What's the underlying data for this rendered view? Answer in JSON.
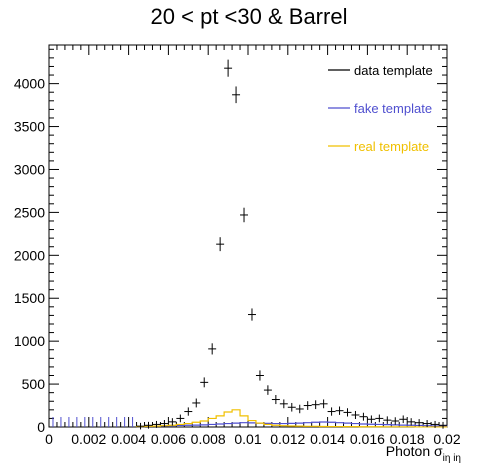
{
  "chart_data": {
    "type": "histogram",
    "title": "20 < pt <30 & Barrel",
    "xlabel": "Photon σ",
    "xlabel_subscript": "iη iη",
    "xlim": [
      0,
      0.02
    ],
    "ylim": [
      0,
      4450
    ],
    "x_ticks": [
      "0",
      "0.002",
      "0.004",
      "0.006",
      "0.008",
      "0.01",
      "0.012",
      "0.014",
      "0.016",
      "0.018",
      "0.02"
    ],
    "y_ticks": [
      "0",
      "500",
      "1000",
      "1500",
      "2000",
      "2500",
      "3000",
      "3500",
      "4000"
    ],
    "y_tick_values": [
      0,
      500,
      1000,
      1500,
      2000,
      2500,
      3000,
      3500,
      4000
    ],
    "bin_width": 0.0004,
    "legend_position": "top-right",
    "colors": {
      "data": "#000000",
      "fake": "#4f4fcf",
      "real": "#f0c000"
    },
    "series": [
      {
        "name": "data template",
        "kind": "points",
        "x": [
          0.0046,
          0.005,
          0.0054,
          0.0058,
          0.0062,
          0.0066,
          0.007,
          0.0074,
          0.0078,
          0.0082,
          0.0086,
          0.009,
          0.0094,
          0.0098,
          0.0102,
          0.0106,
          0.011,
          0.0114,
          0.0118,
          0.0122,
          0.0126,
          0.013,
          0.0134,
          0.0138,
          0.0142,
          0.0146,
          0.015,
          0.0154,
          0.0158,
          0.0162,
          0.0166,
          0.017,
          0.0174,
          0.0178,
          0.0182,
          0.0186,
          0.019,
          0.0194,
          0.0198
        ],
        "y": [
          10,
          20,
          30,
          40,
          60,
          100,
          180,
          280,
          520,
          910,
          2130,
          4180,
          3870,
          2470,
          1310,
          600,
          430,
          320,
          270,
          230,
          210,
          250,
          260,
          270,
          180,
          190,
          170,
          140,
          120,
          90,
          100,
          80,
          70,
          90,
          60,
          50,
          40,
          30,
          20
        ]
      },
      {
        "name": "fake template",
        "kind": "step",
        "x": [
          0.0046,
          0.005,
          0.0054,
          0.0058,
          0.0062,
          0.0066,
          0.007,
          0.0074,
          0.0078,
          0.0082,
          0.0086,
          0.009,
          0.0094,
          0.0098,
          0.0102,
          0.0106,
          0.011,
          0.0114,
          0.0118,
          0.0122,
          0.0126,
          0.013,
          0.0134,
          0.0138,
          0.0142,
          0.0146,
          0.015,
          0.0154,
          0.0158,
          0.0162,
          0.0166,
          0.017,
          0.0174,
          0.0178,
          0.0182,
          0.0186,
          0.019,
          0.0194,
          0.0198
        ],
        "y": [
          5,
          8,
          10,
          12,
          15,
          18,
          20,
          22,
          25,
          30,
          35,
          40,
          45,
          50,
          48,
          45,
          42,
          40,
          40,
          42,
          45,
          50,
          55,
          58,
          55,
          50,
          45,
          40,
          35,
          32,
          30,
          28,
          25,
          22,
          20,
          18,
          15,
          12,
          10
        ]
      },
      {
        "name": "real template",
        "kind": "step",
        "x": [
          0.0046,
          0.005,
          0.0054,
          0.0058,
          0.0062,
          0.0066,
          0.007,
          0.0074,
          0.0078,
          0.0082,
          0.0086,
          0.009,
          0.0094,
          0.0098,
          0.0102,
          0.0106,
          0.011,
          0.0114,
          0.0118,
          0.0122,
          0.0126,
          0.013,
          0.0134,
          0.0138,
          0.0142,
          0.0146,
          0.015,
          0.0154,
          0.0158,
          0.0162,
          0.0166,
          0.017,
          0.0174,
          0.0178,
          0.0182,
          0.0186,
          0.019,
          0.0194,
          0.0198
        ],
        "y": [
          5,
          8,
          10,
          15,
          20,
          30,
          40,
          55,
          70,
          100,
          130,
          175,
          200,
          130,
          75,
          45,
          30,
          20,
          15,
          12,
          10,
          8,
          8,
          6,
          5,
          5,
          4,
          4,
          3,
          3,
          3,
          2,
          2,
          2,
          2,
          1,
          1,
          1,
          1
        ]
      }
    ]
  }
}
